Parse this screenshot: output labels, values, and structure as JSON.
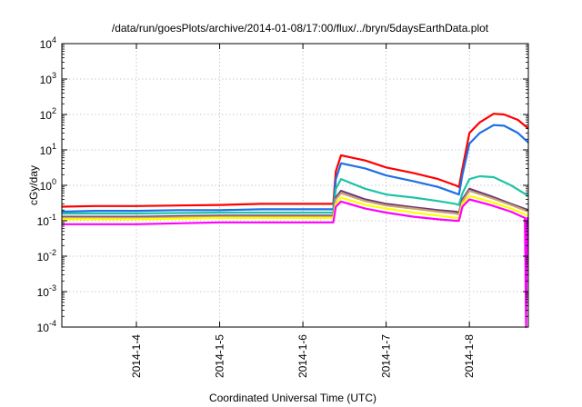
{
  "chart_data": {
    "type": "line",
    "title": "/data/run/goesPlots/archive/2014-01-08/17:00/flux/../bryn/5daysEarthData.plot",
    "xlabel": "Coordinated Universal Time (UTC)",
    "ylabel": "cGy/day",
    "y_scale": "log",
    "ylim": [
      0.0001,
      10000
    ],
    "xlim": [
      "2014-01-03T02:30",
      "2014-01-08T17:00"
    ],
    "grid": true,
    "legend": "none",
    "y_ticks": [
      {
        "base": "10",
        "exp": "-4",
        "value": 0.0001
      },
      {
        "base": "10",
        "exp": "-3",
        "value": 0.001
      },
      {
        "base": "10",
        "exp": "-2",
        "value": 0.01
      },
      {
        "base": "10",
        "exp": "-1",
        "value": 0.1
      },
      {
        "base": "10",
        "exp": "0",
        "value": 1
      },
      {
        "base": "10",
        "exp": "1",
        "value": 10
      },
      {
        "base": "10",
        "exp": "2",
        "value": 100
      },
      {
        "base": "10",
        "exp": "3",
        "value": 1000
      },
      {
        "base": "10",
        "exp": "4",
        "value": 10000
      }
    ],
    "x_ticks": [
      {
        "label": "2014-1-4",
        "date": "2014-01-04T00:00"
      },
      {
        "label": "2014-1-5",
        "date": "2014-01-05T00:00"
      },
      {
        "label": "2014-1-6",
        "date": "2014-01-06T00:00"
      },
      {
        "label": "2014-1-7",
        "date": "2014-01-07T00:00"
      },
      {
        "label": "2014-1-8",
        "date": "2014-01-08T00:00"
      }
    ],
    "series": [
      {
        "color": "#ff0000",
        "points": [
          [
            "2014-01-03T02:30",
            0.25
          ],
          [
            "2014-01-03T12:00",
            0.26
          ],
          [
            "2014-01-04T00:00",
            0.26
          ],
          [
            "2014-01-04T12:00",
            0.27
          ],
          [
            "2014-01-05T00:00",
            0.28
          ],
          [
            "2014-01-05T12:00",
            0.3
          ],
          [
            "2014-01-06T00:00",
            0.3
          ],
          [
            "2014-01-06T08:45",
            0.3
          ],
          [
            "2014-01-06T09:30",
            2.5
          ],
          [
            "2014-01-06T11:00",
            7
          ],
          [
            "2014-01-06T18:00",
            5
          ],
          [
            "2014-01-07T00:00",
            3.2
          ],
          [
            "2014-01-07T08:00",
            2.2
          ],
          [
            "2014-01-07T15:00",
            1.5
          ],
          [
            "2014-01-07T20:00",
            1.0
          ],
          [
            "2014-01-07T21:00",
            0.9
          ],
          [
            "2014-01-07T22:00",
            3
          ],
          [
            "2014-01-08T00:00",
            30
          ],
          [
            "2014-01-08T03:00",
            60
          ],
          [
            "2014-01-08T07:00",
            105
          ],
          [
            "2014-01-08T10:00",
            100
          ],
          [
            "2014-01-08T14:00",
            70
          ],
          [
            "2014-01-08T17:00",
            40
          ]
        ]
      },
      {
        "color": "#1e6fe6",
        "points": [
          [
            "2014-01-03T02:30",
            0.18
          ],
          [
            "2014-01-03T12:00",
            0.19
          ],
          [
            "2014-01-04T00:00",
            0.19
          ],
          [
            "2014-01-04T12:00",
            0.2
          ],
          [
            "2014-01-05T00:00",
            0.2
          ],
          [
            "2014-01-05T12:00",
            0.21
          ],
          [
            "2014-01-06T00:00",
            0.21
          ],
          [
            "2014-01-06T08:45",
            0.21
          ],
          [
            "2014-01-06T09:30",
            1.5
          ],
          [
            "2014-01-06T11:00",
            4.2
          ],
          [
            "2014-01-06T18:00",
            3.0
          ],
          [
            "2014-01-07T00:00",
            1.9
          ],
          [
            "2014-01-07T08:00",
            1.3
          ],
          [
            "2014-01-07T15:00",
            0.9
          ],
          [
            "2014-01-07T20:00",
            0.6
          ],
          [
            "2014-01-07T21:00",
            0.55
          ],
          [
            "2014-01-07T22:00",
            2
          ],
          [
            "2014-01-08T00:00",
            15
          ],
          [
            "2014-01-08T03:00",
            30
          ],
          [
            "2014-01-08T07:00",
            50
          ],
          [
            "2014-01-08T10:00",
            48
          ],
          [
            "2014-01-08T14:00",
            30
          ],
          [
            "2014-01-08T17:00",
            16
          ]
        ]
      },
      {
        "color": "#1fc4a6",
        "points": [
          [
            "2014-01-03T02:30",
            0.16
          ],
          [
            "2014-01-04T00:00",
            0.16
          ],
          [
            "2014-01-05T00:00",
            0.17
          ],
          [
            "2014-01-06T00:00",
            0.17
          ],
          [
            "2014-01-06T08:45",
            0.17
          ],
          [
            "2014-01-06T09:30",
            0.8
          ],
          [
            "2014-01-06T11:00",
            1.5
          ],
          [
            "2014-01-06T18:00",
            0.8
          ],
          [
            "2014-01-07T00:00",
            0.55
          ],
          [
            "2014-01-07T08:00",
            0.45
          ],
          [
            "2014-01-07T15:00",
            0.36
          ],
          [
            "2014-01-07T20:00",
            0.3
          ],
          [
            "2014-01-07T21:00",
            0.28
          ],
          [
            "2014-01-07T22:00",
            0.6
          ],
          [
            "2014-01-08T00:00",
            1.5
          ],
          [
            "2014-01-08T03:00",
            1.8
          ],
          [
            "2014-01-08T07:00",
            1.7
          ],
          [
            "2014-01-08T12:00",
            1.0
          ],
          [
            "2014-01-08T17:00",
            0.5
          ]
        ]
      },
      {
        "color": "#6b3a7d",
        "points": [
          [
            "2014-01-03T02:30",
            0.13
          ],
          [
            "2014-01-04T00:00",
            0.13
          ],
          [
            "2014-01-05T00:00",
            0.14
          ],
          [
            "2014-01-06T00:00",
            0.14
          ],
          [
            "2014-01-06T08:45",
            0.14
          ],
          [
            "2014-01-06T09:30",
            0.45
          ],
          [
            "2014-01-06T11:00",
            0.7
          ],
          [
            "2014-01-06T18:00",
            0.4
          ],
          [
            "2014-01-07T00:00",
            0.3
          ],
          [
            "2014-01-07T08:00",
            0.24
          ],
          [
            "2014-01-07T15:00",
            0.2
          ],
          [
            "2014-01-07T20:00",
            0.18
          ],
          [
            "2014-01-07T21:00",
            0.17
          ],
          [
            "2014-01-07T22:00",
            0.4
          ],
          [
            "2014-01-08T00:00",
            0.8
          ],
          [
            "2014-01-08T06:00",
            0.5
          ],
          [
            "2014-01-08T12:00",
            0.3
          ],
          [
            "2014-01-08T17:00",
            0.2
          ]
        ]
      },
      {
        "color": "#c9a46e",
        "points": [
          [
            "2014-01-03T02:30",
            0.12
          ],
          [
            "2014-01-04T00:00",
            0.12
          ],
          [
            "2014-01-05T00:00",
            0.13
          ],
          [
            "2014-01-06T00:00",
            0.13
          ],
          [
            "2014-01-06T08:45",
            0.13
          ],
          [
            "2014-01-06T09:30",
            0.4
          ],
          [
            "2014-01-06T11:00",
            0.6
          ],
          [
            "2014-01-06T18:00",
            0.36
          ],
          [
            "2014-01-07T00:00",
            0.27
          ],
          [
            "2014-01-07T08:00",
            0.22
          ],
          [
            "2014-01-07T15:00",
            0.18
          ],
          [
            "2014-01-07T20:00",
            0.16
          ],
          [
            "2014-01-07T21:00",
            0.15
          ],
          [
            "2014-01-07T22:00",
            0.35
          ],
          [
            "2014-01-08T00:00",
            0.7
          ],
          [
            "2014-01-08T06:00",
            0.45
          ],
          [
            "2014-01-08T12:00",
            0.28
          ],
          [
            "2014-01-08T17:00",
            0.18
          ]
        ]
      },
      {
        "color": "#ffff00",
        "points": [
          [
            "2014-01-03T02:30",
            0.11
          ],
          [
            "2014-01-04T00:00",
            0.11
          ],
          [
            "2014-01-05T00:00",
            0.12
          ],
          [
            "2014-01-06T00:00",
            0.12
          ],
          [
            "2014-01-06T08:45",
            0.12
          ],
          [
            "2014-01-06T09:30",
            0.3
          ],
          [
            "2014-01-06T11:00",
            0.45
          ],
          [
            "2014-01-06T18:00",
            0.28
          ],
          [
            "2014-01-07T00:00",
            0.22
          ],
          [
            "2014-01-07T08:00",
            0.17
          ],
          [
            "2014-01-07T15:00",
            0.14
          ],
          [
            "2014-01-07T20:00",
            0.12
          ],
          [
            "2014-01-07T21:00",
            0.12
          ],
          [
            "2014-01-07T22:00",
            0.3
          ],
          [
            "2014-01-08T00:00",
            0.5
          ],
          [
            "2014-01-08T06:00",
            0.35
          ],
          [
            "2014-01-08T12:00",
            0.22
          ],
          [
            "2014-01-08T17:00",
            0.14
          ]
        ]
      },
      {
        "color": "#ff00ff",
        "points": [
          [
            "2014-01-03T02:30",
            0.08
          ],
          [
            "2014-01-04T00:00",
            0.08
          ],
          [
            "2014-01-05T00:00",
            0.09
          ],
          [
            "2014-01-06T00:00",
            0.09
          ],
          [
            "2014-01-06T08:45",
            0.09
          ],
          [
            "2014-01-06T09:30",
            0.25
          ],
          [
            "2014-01-06T11:00",
            0.35
          ],
          [
            "2014-01-06T18:00",
            0.22
          ],
          [
            "2014-01-07T00:00",
            0.17
          ],
          [
            "2014-01-07T08:00",
            0.13
          ],
          [
            "2014-01-07T15:00",
            0.11
          ],
          [
            "2014-01-07T20:00",
            0.1
          ],
          [
            "2014-01-07T21:00",
            0.1
          ],
          [
            "2014-01-07T22:00",
            0.25
          ],
          [
            "2014-01-08T00:00",
            0.4
          ],
          [
            "2014-01-08T06:00",
            0.28
          ],
          [
            "2014-01-08T12:00",
            0.18
          ],
          [
            "2014-01-08T16:00",
            0.12
          ],
          [
            "2014-01-08T16:20",
            0.0001
          ],
          [
            "2014-01-08T16:40",
            0.12
          ],
          [
            "2014-01-08T17:00",
            0.11
          ]
        ]
      }
    ]
  }
}
